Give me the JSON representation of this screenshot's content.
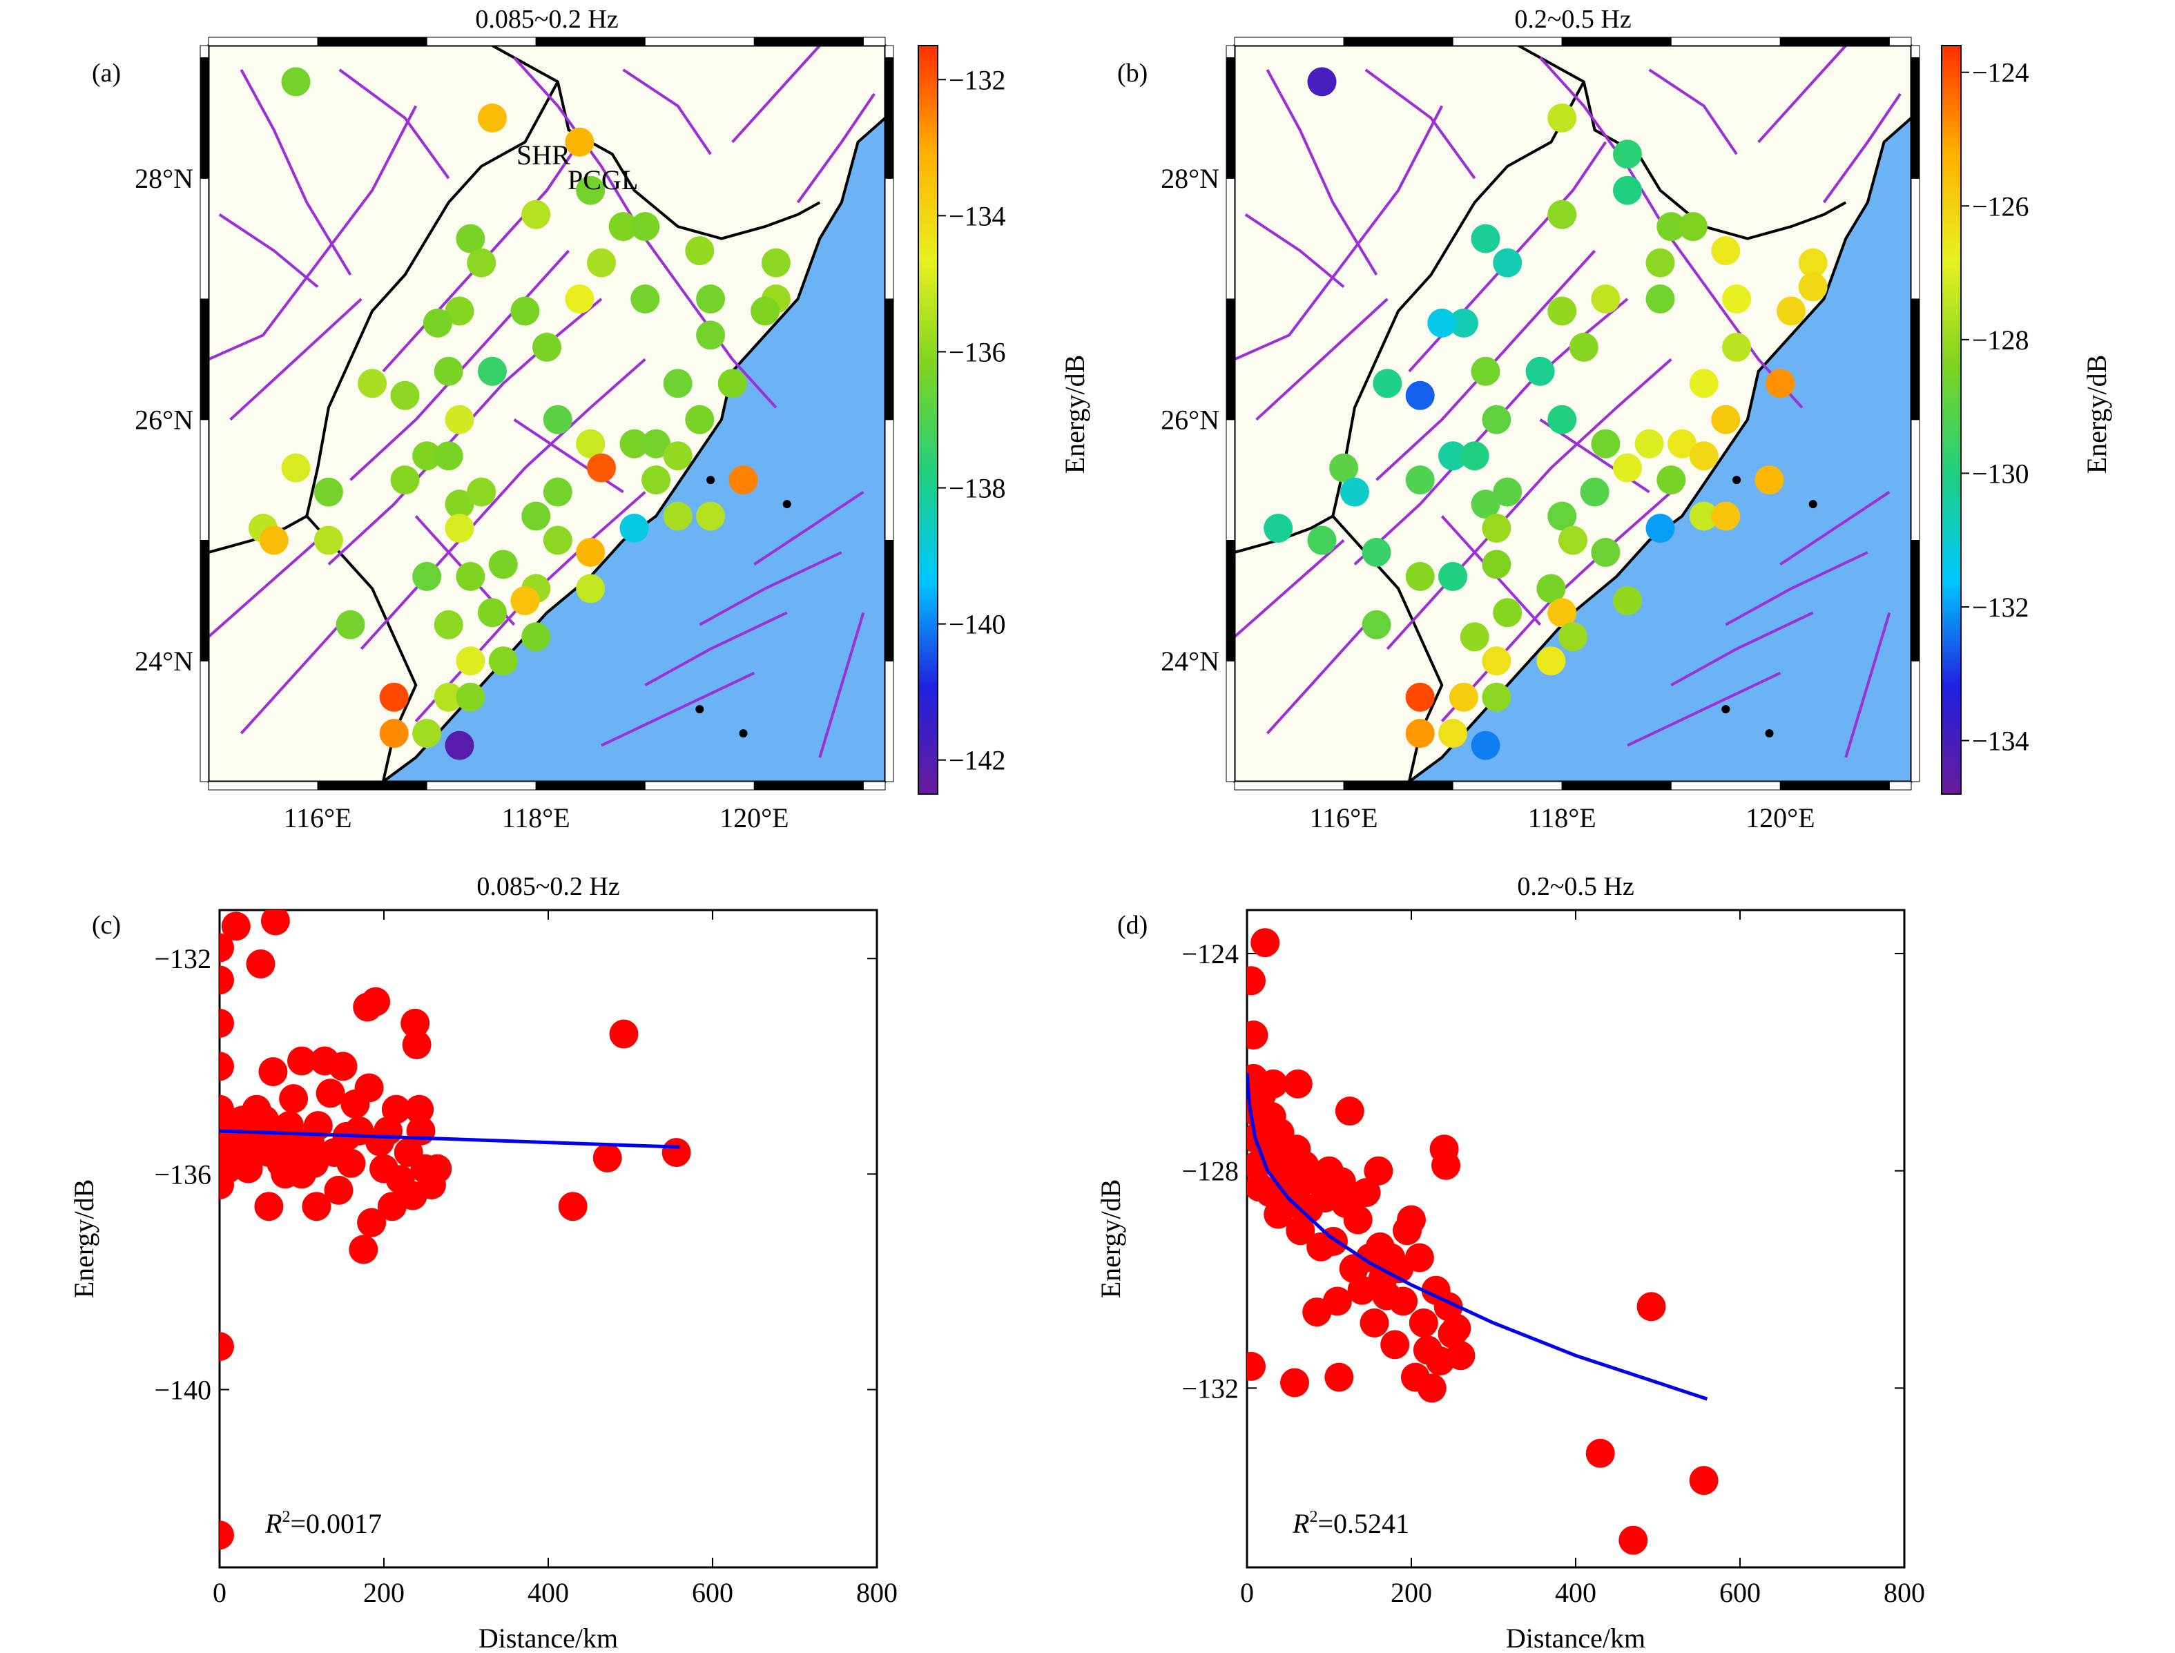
{
  "colors": {
    "land": "#fbfbf0",
    "sea": "#6cb3f5",
    "fault": "#9b30d9",
    "dot": "#ff0000",
    "fit": "#0000ee",
    "border": "#000000",
    "colormap": [
      "#6a1b9a",
      "#2020e0",
      "#00c8ff",
      "#20d080",
      "#7ed321",
      "#e8f020",
      "#ffb000",
      "#ff3000"
    ]
  },
  "panels": {
    "a": {
      "label": "(a)",
      "title": "0.085~0.2 Hz"
    },
    "b": {
      "label": "(b)",
      "title": "0.2~0.5 Hz"
    },
    "c": {
      "label": "(c)",
      "title": "0.085~0.2 Hz"
    },
    "d": {
      "label": "(d)",
      "title": "0.2~0.5 Hz"
    }
  },
  "map": {
    "lon_range": [
      115.0,
      121.2
    ],
    "lat_range": [
      23.0,
      29.1
    ],
    "lon_ticks": [
      "116°E",
      "118°E",
      "120°E"
    ],
    "lat_ticks": [
      "28°N",
      "26°N",
      "24°N"
    ],
    "station_labels": {
      "shr": "SHR",
      "pcgl": "PCGL"
    }
  },
  "colorbar_a": {
    "label": "Energy/dB",
    "range": [
      -142.5,
      -131.5
    ],
    "ticks": [
      "−132",
      "−134",
      "−136",
      "−138",
      "−140",
      "−142"
    ]
  },
  "colorbar_b": {
    "label": "Energy/dB",
    "range": [
      -134.8,
      -123.6
    ],
    "ticks": [
      "−124",
      "−126",
      "−128",
      "−130",
      "−132",
      "−134"
    ]
  },
  "chart_data": [
    {
      "type": "scatter",
      "title": "0.085~0.2 Hz",
      "xlabel": "Distance/km",
      "ylabel": "Energy/dB",
      "xlim": [
        0,
        800
      ],
      "ylim": [
        -143.3,
        -131.1
      ],
      "x_ticks": [
        "0",
        "200",
        "400",
        "600",
        "800"
      ],
      "y_ticks": [
        "−132",
        "−136",
        "−140"
      ],
      "annotation": {
        "r": "R",
        "sup": "2",
        "value": "=0.0017"
      },
      "fit": {
        "x": [
          0,
          560
        ],
        "y": [
          -135.2,
          -135.5
        ]
      },
      "points": [
        [
          0,
          -131.8
        ],
        [
          0,
          -132.4
        ],
        [
          0,
          -133.2
        ],
        [
          0,
          -134.0
        ],
        [
          0,
          -134.8
        ],
        [
          0,
          -135.3
        ],
        [
          0,
          -135.8
        ],
        [
          0,
          -136.2
        ],
        [
          0,
          -139.2
        ],
        [
          0,
          -142.7
        ],
        [
          5,
          -135.1
        ],
        [
          8,
          -135.5
        ],
        [
          10,
          -135.9
        ],
        [
          12,
          -135.2
        ],
        [
          20,
          -131.4
        ],
        [
          28,
          -135.0
        ],
        [
          30,
          -135.6
        ],
        [
          35,
          -135.9
        ],
        [
          40,
          -135.3
        ],
        [
          45,
          -134.8
        ],
        [
          50,
          -132.1
        ],
        [
          55,
          -135.0
        ],
        [
          60,
          -135.6
        ],
        [
          60,
          -136.6
        ],
        [
          65,
          -134.1
        ],
        [
          68,
          -131.3
        ],
        [
          70,
          -135.3
        ],
        [
          75,
          -135.8
        ],
        [
          80,
          -136.0
        ],
        [
          85,
          -135.1
        ],
        [
          90,
          -134.6
        ],
        [
          95,
          -135.5
        ],
        [
          100,
          -133.9
        ],
        [
          100,
          -136.0
        ],
        [
          110,
          -135.4
        ],
        [
          115,
          -135.8
        ],
        [
          118,
          -136.6
        ],
        [
          120,
          -135.1
        ],
        [
          128,
          -133.9
        ],
        [
          135,
          -134.5
        ],
        [
          140,
          -135.6
        ],
        [
          145,
          -136.3
        ],
        [
          150,
          -134.0
        ],
        [
          155,
          -135.3
        ],
        [
          160,
          -135.8
        ],
        [
          165,
          -134.7
        ],
        [
          170,
          -135.2
        ],
        [
          175,
          -137.4
        ],
        [
          180,
          -132.9
        ],
        [
          182,
          -134.4
        ],
        [
          185,
          -136.9
        ],
        [
          190,
          -132.8
        ],
        [
          195,
          -135.4
        ],
        [
          200,
          -135.9
        ],
        [
          205,
          -135.2
        ],
        [
          210,
          -136.6
        ],
        [
          215,
          -134.8
        ],
        [
          220,
          -136.1
        ],
        [
          230,
          -135.6
        ],
        [
          235,
          -136.4
        ],
        [
          238,
          -133.2
        ],
        [
          240,
          -133.6
        ],
        [
          243,
          -134.8
        ],
        [
          245,
          -135.2
        ],
        [
          250,
          -135.9
        ],
        [
          258,
          -136.2
        ],
        [
          265,
          -135.9
        ],
        [
          430,
          -136.6
        ],
        [
          472,
          -135.7
        ],
        [
          492,
          -133.4
        ],
        [
          556,
          -135.6
        ]
      ]
    },
    {
      "type": "scatter",
      "title": "0.2~0.5 Hz",
      "xlabel": "Distance/km",
      "ylabel": "Energy/dB",
      "xlim": [
        0,
        800
      ],
      "ylim": [
        -135.3,
        -123.2
      ],
      "x_ticks": [
        "0",
        "200",
        "400",
        "600",
        "800"
      ],
      "y_ticks": [
        "−124",
        "−128",
        "−132"
      ],
      "annotation": {
        "r": "R",
        "sup": "2",
        "value": "=0.5241"
      },
      "fit": {
        "x": [
          0,
          3,
          10,
          25,
          50,
          100,
          150,
          200,
          300,
          400,
          500,
          560
        ],
        "y": [
          -126.2,
          -126.8,
          -127.4,
          -128.0,
          -128.5,
          -129.2,
          -129.7,
          -130.1,
          -130.8,
          -131.4,
          -131.9,
          -132.2
        ]
      },
      "points": [
        [
          5,
          -124.5
        ],
        [
          5,
          -131.6
        ],
        [
          8,
          -125.5
        ],
        [
          8,
          -126.3
        ],
        [
          10,
          -126.9
        ],
        [
          10,
          -127.4
        ],
        [
          12,
          -127.9
        ],
        [
          15,
          -128.3
        ],
        [
          18,
          -126.6
        ],
        [
          20,
          -127.2
        ],
        [
          22,
          -123.8
        ],
        [
          25,
          -127.8
        ],
        [
          28,
          -128.4
        ],
        [
          30,
          -127.0
        ],
        [
          32,
          -126.4
        ],
        [
          35,
          -127.6
        ],
        [
          38,
          -128.8
        ],
        [
          40,
          -127.3
        ],
        [
          45,
          -128.0
        ],
        [
          50,
          -128.3
        ],
        [
          55,
          -128.6
        ],
        [
          58,
          -131.9
        ],
        [
          60,
          -127.6
        ],
        [
          62,
          -126.4
        ],
        [
          65,
          -129.1
        ],
        [
          68,
          -128.2
        ],
        [
          70,
          -127.9
        ],
        [
          75,
          -128.7
        ],
        [
          80,
          -128.1
        ],
        [
          85,
          -130.6
        ],
        [
          90,
          -129.4
        ],
        [
          95,
          -128.5
        ],
        [
          100,
          -128.0
        ],
        [
          105,
          -129.3
        ],
        [
          110,
          -130.4
        ],
        [
          112,
          -131.8
        ],
        [
          115,
          -128.2
        ],
        [
          120,
          -128.6
        ],
        [
          125,
          -126.9
        ],
        [
          130,
          -129.8
        ],
        [
          135,
          -128.9
        ],
        [
          140,
          -130.2
        ],
        [
          145,
          -128.4
        ],
        [
          150,
          -129.6
        ],
        [
          155,
          -130.8
        ],
        [
          160,
          -128.0
        ],
        [
          162,
          -129.4
        ],
        [
          165,
          -130.0
        ],
        [
          170,
          -130.3
        ],
        [
          175,
          -129.6
        ],
        [
          180,
          -131.2
        ],
        [
          185,
          -129.8
        ],
        [
          190,
          -130.4
        ],
        [
          195,
          -129.1
        ],
        [
          200,
          -128.9
        ],
        [
          205,
          -131.8
        ],
        [
          210,
          -129.6
        ],
        [
          215,
          -130.8
        ],
        [
          220,
          -131.3
        ],
        [
          225,
          -132.0
        ],
        [
          230,
          -130.2
        ],
        [
          235,
          -131.5
        ],
        [
          240,
          -127.6
        ],
        [
          242,
          -127.9
        ],
        [
          245,
          -130.5
        ],
        [
          250,
          -131.0
        ],
        [
          255,
          -130.9
        ],
        [
          260,
          -131.4
        ],
        [
          430,
          -133.2
        ],
        [
          470,
          -134.8
        ],
        [
          492,
          -130.5
        ],
        [
          556,
          -133.7
        ]
      ]
    }
  ],
  "stations_a": [
    [
      115.8,
      28.8,
      -136.4
    ],
    [
      117.6,
      28.5,
      -133.4
    ],
    [
      118.4,
      28.3,
      -133.2
    ],
    [
      118.5,
      27.9,
      -136.4
    ],
    [
      118.0,
      27.7,
      -135.4
    ],
    [
      118.8,
      27.6,
      -136.2
    ],
    [
      119.0,
      27.6,
      -136.3
    ],
    [
      119.5,
      27.4,
      -135.9
    ],
    [
      117.4,
      27.5,
      -136.3
    ],
    [
      117.5,
      27.3,
      -136.0
    ],
    [
      118.6,
      27.3,
      -135.6
    ],
    [
      120.2,
      27.3,
      -136.0
    ],
    [
      120.2,
      27.0,
      -135.8
    ],
    [
      119.6,
      27.0,
      -136.4
    ],
    [
      118.4,
      27.0,
      -134.6
    ],
    [
      119.0,
      27.0,
      -136.4
    ],
    [
      117.9,
      26.9,
      -136.3
    ],
    [
      117.3,
      26.9,
      -136.1
    ],
    [
      117.1,
      26.8,
      -136.3
    ],
    [
      120.1,
      26.9,
      -136.2
    ],
    [
      119.6,
      26.7,
      -136.4
    ],
    [
      118.1,
      26.6,
      -136.3
    ],
    [
      117.6,
      26.4,
      -137.4
    ],
    [
      117.2,
      26.4,
      -136.3
    ],
    [
      116.5,
      26.3,
      -135.6
    ],
    [
      116.8,
      26.2,
      -136.0
    ],
    [
      119.3,
      26.3,
      -136.5
    ],
    [
      119.8,
      26.3,
      -136.2
    ],
    [
      119.5,
      26.0,
      -136.3
    ],
    [
      117.3,
      26.0,
      -135.0
    ],
    [
      118.2,
      26.0,
      -136.8
    ],
    [
      115.8,
      25.6,
      -134.9
    ],
    [
      117.0,
      25.7,
      -136.2
    ],
    [
      117.2,
      25.7,
      -136.3
    ],
    [
      118.5,
      25.8,
      -135.1
    ],
    [
      118.9,
      25.8,
      -136.3
    ],
    [
      119.1,
      25.8,
      -136.4
    ],
    [
      119.3,
      25.7,
      -135.9
    ],
    [
      118.6,
      25.6,
      -132.0
    ],
    [
      116.1,
      25.4,
      -136.4
    ],
    [
      116.8,
      25.5,
      -136.1
    ],
    [
      117.3,
      25.3,
      -136.1
    ],
    [
      117.5,
      25.4,
      -136.0
    ],
    [
      118.0,
      25.2,
      -136.4
    ],
    [
      118.2,
      25.4,
      -136.4
    ],
    [
      119.1,
      25.5,
      -136.0
    ],
    [
      119.9,
      25.5,
      -132.5
    ],
    [
      115.5,
      25.1,
      -135.3
    ],
    [
      116.1,
      25.0,
      -135.4
    ],
    [
      117.3,
      25.1,
      -134.9
    ],
    [
      118.2,
      25.0,
      -136.0
    ],
    [
      118.9,
      25.1,
      -139.0
    ],
    [
      119.3,
      25.2,
      -135.6
    ],
    [
      119.6,
      25.2,
      -135.4
    ],
    [
      115.6,
      25.0,
      -133.4
    ],
    [
      118.5,
      24.9,
      -133.2
    ],
    [
      117.0,
      24.7,
      -136.6
    ],
    [
      117.4,
      24.7,
      -136.2
    ],
    [
      117.7,
      24.8,
      -136.3
    ],
    [
      118.0,
      24.6,
      -135.8
    ],
    [
      118.5,
      24.6,
      -135.2
    ],
    [
      116.3,
      24.3,
      -136.4
    ],
    [
      117.2,
      24.3,
      -136.0
    ],
    [
      117.6,
      24.4,
      -136.2
    ],
    [
      117.9,
      24.5,
      -133.5
    ],
    [
      117.4,
      24.0,
      -134.8
    ],
    [
      117.7,
      24.0,
      -136.1
    ],
    [
      118.0,
      24.2,
      -136.3
    ],
    [
      116.7,
      23.7,
      -131.8
    ],
    [
      117.2,
      23.7,
      -135.4
    ],
    [
      117.4,
      23.7,
      -136.1
    ],
    [
      116.7,
      23.4,
      -132.6
    ],
    [
      117.0,
      23.4,
      -135.7
    ],
    [
      117.3,
      23.3,
      -142.1
    ]
  ],
  "stations_b": [
    [
      115.8,
      28.8,
      -134.0
    ],
    [
      118.0,
      28.5,
      -127.4
    ],
    [
      118.6,
      28.2,
      -129.8
    ],
    [
      118.6,
      27.9,
      -130.0
    ],
    [
      118.0,
      27.7,
      -128.2
    ],
    [
      119.0,
      27.6,
      -128.5
    ],
    [
      119.2,
      27.6,
      -128.4
    ],
    [
      119.5,
      27.4,
      -126.6
    ],
    [
      117.3,
      27.5,
      -130.3
    ],
    [
      117.5,
      27.3,
      -130.6
    ],
    [
      118.9,
      27.3,
      -128.2
    ],
    [
      120.3,
      27.3,
      -126.4
    ],
    [
      120.3,
      27.1,
      -126.2
    ],
    [
      119.6,
      27.0,
      -126.8
    ],
    [
      118.4,
      27.0,
      -127.4
    ],
    [
      118.9,
      27.0,
      -128.6
    ],
    [
      118.0,
      26.9,
      -128.1
    ],
    [
      117.1,
      26.8,
      -130.6
    ],
    [
      116.9,
      26.8,
      -131.3
    ],
    [
      120.1,
      26.9,
      -126.1
    ],
    [
      119.6,
      26.6,
      -127.5
    ],
    [
      118.2,
      26.6,
      -128.3
    ],
    [
      117.8,
      26.4,
      -130.2
    ],
    [
      117.3,
      26.4,
      -128.6
    ],
    [
      116.4,
      26.3,
      -130.1
    ],
    [
      116.7,
      26.2,
      -132.6
    ],
    [
      119.3,
      26.3,
      -126.8
    ],
    [
      120.0,
      26.3,
      -124.8
    ],
    [
      119.5,
      26.0,
      -125.8
    ],
    [
      117.4,
      26.0,
      -128.9
    ],
    [
      118.0,
      26.0,
      -130.0
    ],
    [
      116.0,
      25.6,
      -129.0
    ],
    [
      117.0,
      25.7,
      -130.4
    ],
    [
      117.2,
      25.7,
      -130.0
    ],
    [
      118.4,
      25.8,
      -128.6
    ],
    [
      118.8,
      25.8,
      -127.0
    ],
    [
      119.1,
      25.8,
      -126.6
    ],
    [
      119.3,
      25.7,
      -126.2
    ],
    [
      118.6,
      25.6,
      -126.9
    ],
    [
      116.1,
      25.4,
      -130.9
    ],
    [
      116.7,
      25.5,
      -129.2
    ],
    [
      117.3,
      25.3,
      -129.0
    ],
    [
      117.5,
      25.4,
      -129.0
    ],
    [
      118.0,
      25.2,
      -128.8
    ],
    [
      118.3,
      25.4,
      -129.1
    ],
    [
      119.0,
      25.5,
      -128.5
    ],
    [
      119.9,
      25.5,
      -125.4
    ],
    [
      115.4,
      25.1,
      -130.3
    ],
    [
      115.8,
      25.0,
      -129.4
    ],
    [
      117.4,
      25.1,
      -128.0
    ],
    [
      118.1,
      25.0,
      -127.9
    ],
    [
      118.9,
      25.1,
      -132.0
    ],
    [
      119.3,
      25.2,
      -127.3
    ],
    [
      119.5,
      25.2,
      -125.7
    ],
    [
      116.3,
      24.9,
      -129.6
    ],
    [
      118.4,
      24.9,
      -128.7
    ],
    [
      116.7,
      24.7,
      -128.3
    ],
    [
      117.0,
      24.7,
      -130.0
    ],
    [
      117.4,
      24.8,
      -128.4
    ],
    [
      117.9,
      24.6,
      -128.5
    ],
    [
      118.6,
      24.5,
      -128.1
    ],
    [
      116.3,
      24.3,
      -128.8
    ],
    [
      117.2,
      24.2,
      -128.1
    ],
    [
      117.5,
      24.4,
      -128.3
    ],
    [
      118.0,
      24.4,
      -125.7
    ],
    [
      117.4,
      24.0,
      -126.4
    ],
    [
      117.9,
      24.0,
      -126.6
    ],
    [
      118.1,
      24.2,
      -128.0
    ],
    [
      116.7,
      23.7,
      -123.9
    ],
    [
      117.1,
      23.7,
      -125.9
    ],
    [
      117.4,
      23.7,
      -128.2
    ],
    [
      116.7,
      23.4,
      -124.9
    ],
    [
      117.0,
      23.4,
      -126.4
    ],
    [
      117.3,
      23.3,
      -132.3
    ]
  ]
}
